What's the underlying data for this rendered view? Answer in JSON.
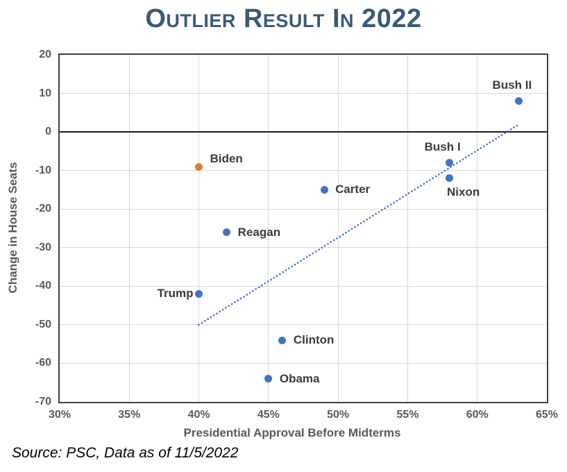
{
  "title": "Outlier Result In 2022",
  "source": "Source: PSC, Data as of 11/5/2022",
  "colors": {
    "title": "#3a5a7a",
    "axis_text": "#595959",
    "label_text": "#3b3b3b",
    "grid": "#d6d6d6",
    "plot_border": "#404040",
    "zero_line": "#1a1a1a",
    "dot_blue": "#4472c4",
    "dot_orange": "#e07e30",
    "trend": "#4472c4"
  },
  "chart_data": {
    "type": "scatter",
    "title": "Outlier Result In 2022",
    "xlabel": "Presidential Approval Before Midterms",
    "ylabel": "Change in House Seats",
    "xlim": [
      30,
      65
    ],
    "ylim": [
      -70,
      20
    ],
    "x_tick_values": [
      30,
      35,
      40,
      45,
      50,
      55,
      60,
      65
    ],
    "x_ticks": [
      "30%",
      "35%",
      "40%",
      "45%",
      "50%",
      "55%",
      "60%",
      "65%"
    ],
    "y_ticks": [
      20,
      10,
      0,
      -10,
      -20,
      -30,
      -40,
      -50,
      -60,
      -70
    ],
    "grid": true,
    "zero_line": true,
    "legend": false,
    "points": [
      {
        "label": "Bush II",
        "x": 63,
        "y": 8,
        "color": "#4472c4",
        "label_side": "above"
      },
      {
        "label": "Bush I",
        "x": 58,
        "y": -8,
        "color": "#4472c4",
        "label_side": "above"
      },
      {
        "label": "Nixon",
        "x": 58,
        "y": -12,
        "color": "#4472c4",
        "label_side": "below"
      },
      {
        "label": "Carter",
        "x": 49,
        "y": -15,
        "color": "#4472c4",
        "label_side": "right"
      },
      {
        "label": "Biden",
        "x": 40,
        "y": -9,
        "color": "#e07e30",
        "label_side": "right",
        "label_dy": -11
      },
      {
        "label": "Reagan",
        "x": 42,
        "y": -26,
        "color": "#4472c4",
        "label_side": "right"
      },
      {
        "label": "Trump",
        "x": 40,
        "y": -42,
        "color": "#4472c4",
        "label_side": "left"
      },
      {
        "label": "Clinton",
        "x": 46,
        "y": -54,
        "color": "#4472c4",
        "label_side": "right"
      },
      {
        "label": "Obama",
        "x": 45,
        "y": -64,
        "color": "#4472c4",
        "label_side": "right"
      }
    ],
    "trendline": {
      "x1": 40,
      "y1": -50,
      "x2": 63,
      "y2": 2,
      "style": "dotted",
      "color": "#4472c4"
    }
  }
}
